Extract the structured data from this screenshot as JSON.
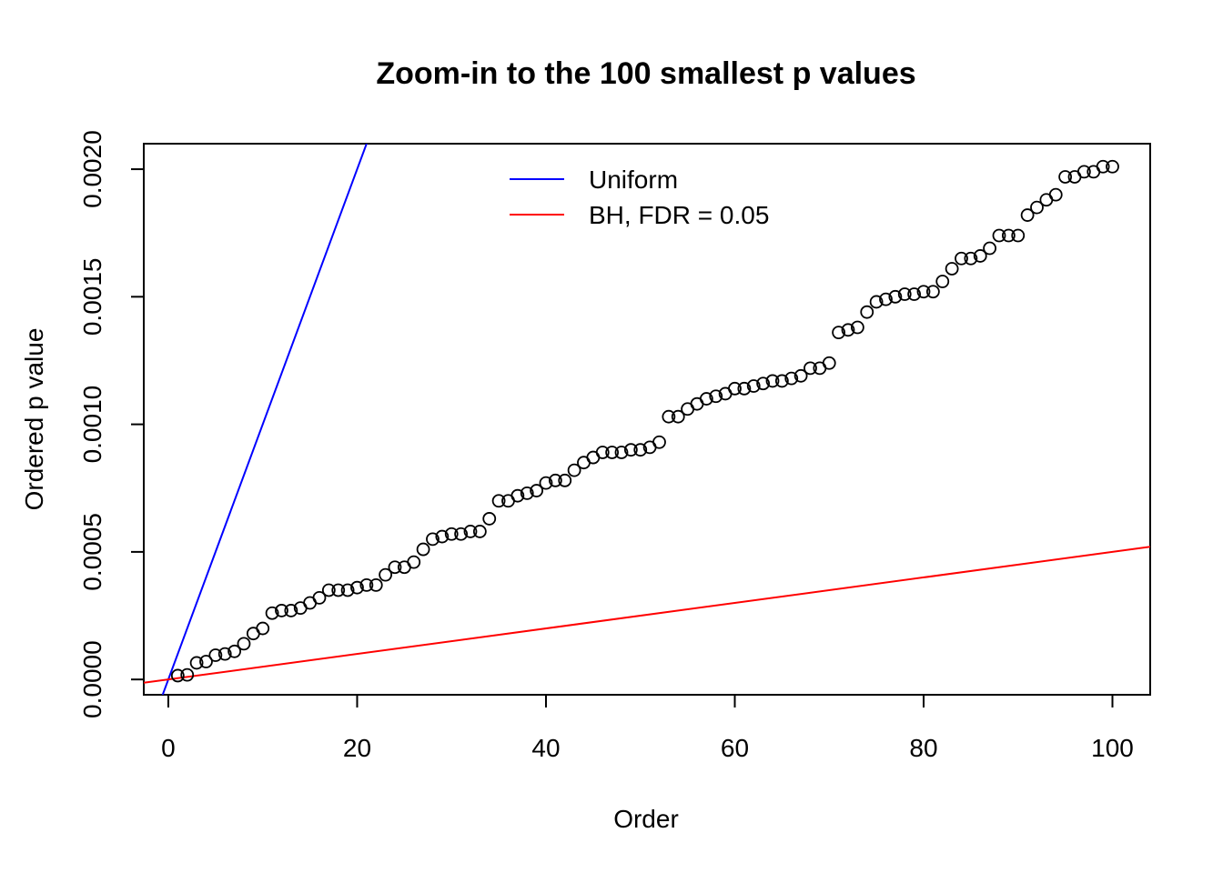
{
  "chart_data": {
    "type": "scatter",
    "title": "Zoom-in to the 100 smallest p values",
    "xlabel": "Order",
    "ylabel": "Ordered p value",
    "xlim": [
      -2.6,
      104
    ],
    "ylim": [
      -6e-05,
      0.0021
    ],
    "x_ticks": [
      0,
      20,
      40,
      60,
      80,
      100
    ],
    "x_tick_labels": [
      "0",
      "20",
      "40",
      "60",
      "80",
      "100"
    ],
    "y_ticks": [
      0,
      0.0005,
      0.001,
      0.0015,
      0.002
    ],
    "y_tick_labels": [
      "0.0000",
      "0.0005",
      "0.0010",
      "0.0015",
      "0.0020"
    ],
    "grid": false,
    "legend_position": "top-center",
    "series": [
      {
        "type": "scatter",
        "marker": "open-circle",
        "color": "#000000",
        "x": [
          1,
          2,
          3,
          4,
          5,
          6,
          7,
          8,
          9,
          10,
          11,
          12,
          13,
          14,
          15,
          16,
          17,
          18,
          19,
          20,
          21,
          22,
          23,
          24,
          25,
          26,
          27,
          28,
          29,
          30,
          31,
          32,
          33,
          34,
          35,
          36,
          37,
          38,
          39,
          40,
          41,
          42,
          43,
          44,
          45,
          46,
          47,
          48,
          49,
          50,
          51,
          52,
          53,
          54,
          55,
          56,
          57,
          58,
          59,
          60,
          61,
          62,
          63,
          64,
          65,
          66,
          67,
          68,
          69,
          70,
          71,
          72,
          73,
          74,
          75,
          76,
          77,
          78,
          79,
          80,
          81,
          82,
          83,
          84,
          85,
          86,
          87,
          88,
          89,
          90,
          91,
          92,
          93,
          94,
          95,
          96,
          97,
          98,
          99,
          100
        ],
        "y": [
          1.5e-05,
          1.8e-05,
          6.5e-05,
          7e-05,
          9.5e-05,
          0.0001,
          0.00011,
          0.00014,
          0.00018,
          0.0002,
          0.00026,
          0.00027,
          0.00027,
          0.00028,
          0.0003,
          0.00032,
          0.00035,
          0.00035,
          0.00035,
          0.00036,
          0.00037,
          0.00037,
          0.00041,
          0.00044,
          0.00044,
          0.00046,
          0.00051,
          0.00055,
          0.00056,
          0.00057,
          0.00057,
          0.00058,
          0.00058,
          0.00063,
          0.0007,
          0.0007,
          0.00072,
          0.00073,
          0.00074,
          0.00077,
          0.00078,
          0.00078,
          0.00082,
          0.00085,
          0.00087,
          0.00089,
          0.00089,
          0.00089,
          0.0009,
          0.0009,
          0.00091,
          0.00093,
          0.00103,
          0.00103,
          0.00106,
          0.00108,
          0.0011,
          0.00111,
          0.00112,
          0.00114,
          0.00114,
          0.00115,
          0.00116,
          0.00117,
          0.00117,
          0.00118,
          0.00119,
          0.00122,
          0.00122,
          0.00124,
          0.00136,
          0.00137,
          0.00138,
          0.00144,
          0.00148,
          0.00149,
          0.0015,
          0.00151,
          0.00151,
          0.00152,
          0.00152,
          0.00156,
          0.00161,
          0.00165,
          0.00165,
          0.00166,
          0.00169,
          0.00174,
          0.00174,
          0.00174,
          0.00182,
          0.00185,
          0.00188,
          0.0019,
          0.00197,
          0.00197,
          0.00199,
          0.00199,
          0.00201,
          0.00201
        ]
      },
      {
        "type": "line",
        "name": "Uniform",
        "color": "#0000ff",
        "intercept": 0,
        "slope": 0.0001
      },
      {
        "type": "line",
        "name": "BH, FDR = 0.05",
        "color": "#ff0000",
        "intercept": 0,
        "slope": 5e-06
      }
    ]
  }
}
